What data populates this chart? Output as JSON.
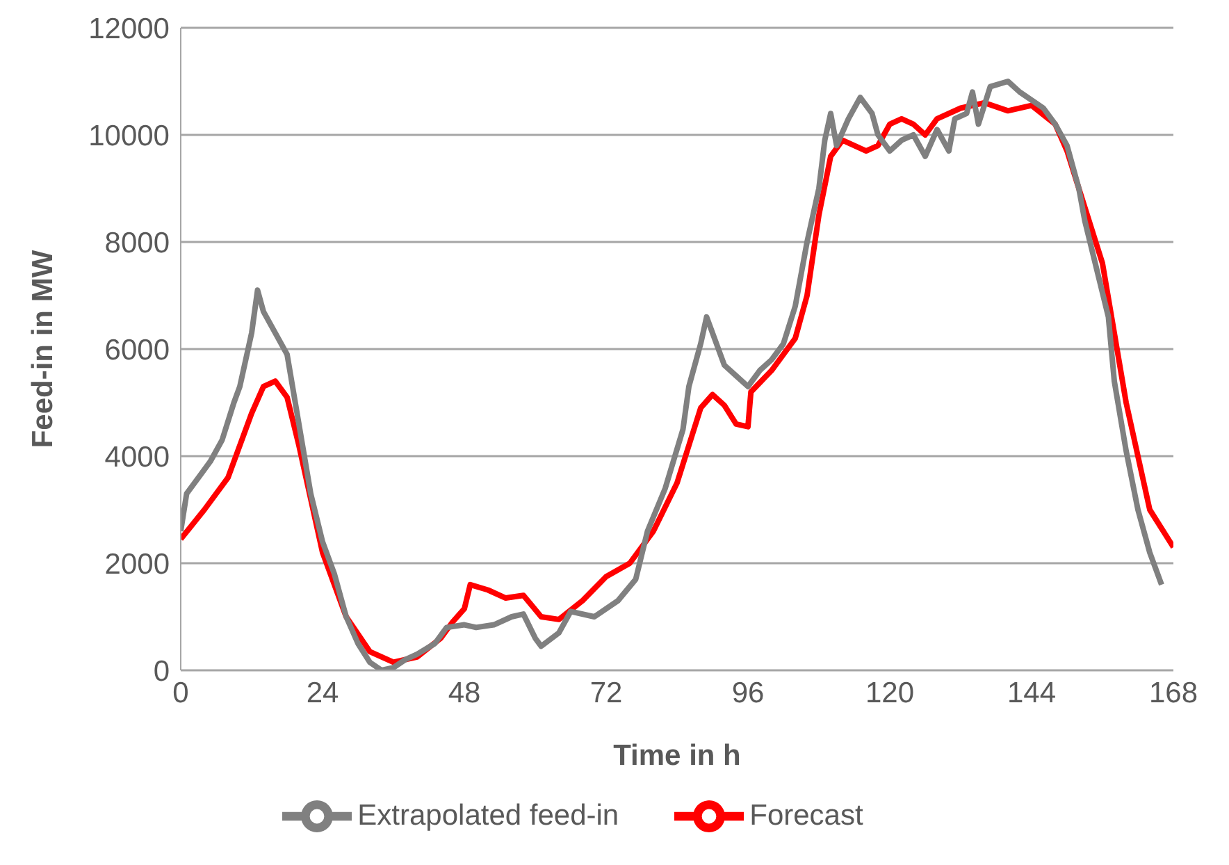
{
  "chart_data": {
    "type": "line",
    "xlabel": "Time in h",
    "ylabel": "Feed-in in MW",
    "xlim": [
      0,
      168
    ],
    "xticks": [
      0,
      24,
      48,
      72,
      96,
      120,
      144,
      168
    ],
    "ylim": [
      0,
      12000
    ],
    "yticks": [
      0,
      2000,
      4000,
      6000,
      8000,
      10000,
      12000
    ],
    "grid": "y",
    "legend": "bottom",
    "marker": "none",
    "line_style": "solid",
    "series": [
      {
        "name": "Forecast",
        "color": "#ff0000",
        "x": [
          0,
          4,
          8,
          10,
          12,
          14,
          16,
          18,
          20,
          22,
          24,
          28,
          32,
          36,
          40,
          44,
          46,
          48,
          49,
          52,
          55,
          58,
          61,
          64,
          68,
          72,
          76,
          80,
          84,
          86,
          88,
          90,
          92,
          94,
          96,
          96.5,
          100,
          104,
          106,
          108,
          110,
          112,
          116,
          118,
          120,
          122,
          124,
          126,
          128,
          132,
          136,
          140,
          144,
          148,
          150,
          152,
          156,
          160,
          164,
          168
        ],
        "values": [
          2450,
          3000,
          3600,
          4200,
          4800,
          5300,
          5400,
          5100,
          4200,
          3200,
          2200,
          1000,
          350,
          150,
          250,
          600,
          900,
          1150,
          1600,
          1500,
          1350,
          1400,
          1000,
          950,
          1300,
          1750,
          2000,
          2600,
          3500,
          4200,
          4900,
          5150,
          4950,
          4600,
          4550,
          5200,
          5600,
          6200,
          7000,
          8500,
          9600,
          9900,
          9700,
          9800,
          10200,
          10300,
          10200,
          10000,
          10300,
          10500,
          10600,
          10450,
          10550,
          10200,
          9700,
          9000,
          7600,
          5000,
          3000,
          2300
        ]
      },
      {
        "name": "Extrapolated feed-in",
        "color": "#808080",
        "x": [
          0,
          1,
          3,
          5,
          7,
          9,
          10,
          12,
          13,
          14,
          16,
          18,
          20,
          22,
          24,
          26,
          28,
          30,
          32,
          34,
          36,
          38,
          40,
          43,
          45,
          48,
          50,
          53,
          56,
          58,
          60,
          61,
          64,
          66,
          70,
          74,
          77,
          79,
          82,
          85,
          86,
          88,
          89,
          90,
          92,
          94,
          96,
          98,
          100,
          102,
          104,
          106,
          108,
          109,
          110,
          111,
          113,
          115,
          117,
          118,
          120,
          122,
          124,
          126,
          128,
          130,
          131,
          133,
          134,
          135,
          137,
          140,
          142,
          146,
          148,
          150,
          152,
          153,
          155,
          157,
          158,
          160,
          162,
          164,
          166
        ],
        "values": [
          2600,
          3300,
          3600,
          3900,
          4300,
          5000,
          5300,
          6300,
          7100,
          6700,
          6300,
          5900,
          4600,
          3300,
          2400,
          1800,
          1000,
          500,
          150,
          0,
          50,
          200,
          300,
          500,
          800,
          850,
          800,
          850,
          1000,
          1050,
          600,
          450,
          700,
          1100,
          1000,
          1300,
          1700,
          2600,
          3400,
          4500,
          5300,
          6100,
          6600,
          6300,
          5700,
          5500,
          5300,
          5600,
          5800,
          6100,
          6800,
          8000,
          9000,
          9900,
          10400,
          9800,
          10300,
          10700,
          10400,
          10000,
          9700,
          9900,
          10000,
          9600,
          10100,
          9700,
          10300,
          10400,
          10800,
          10200,
          10900,
          11000,
          10800,
          10500,
          10200,
          9800,
          9000,
          8400,
          7500,
          6600,
          5400,
          4100,
          3000,
          2200,
          1600
        ]
      }
    ]
  }
}
